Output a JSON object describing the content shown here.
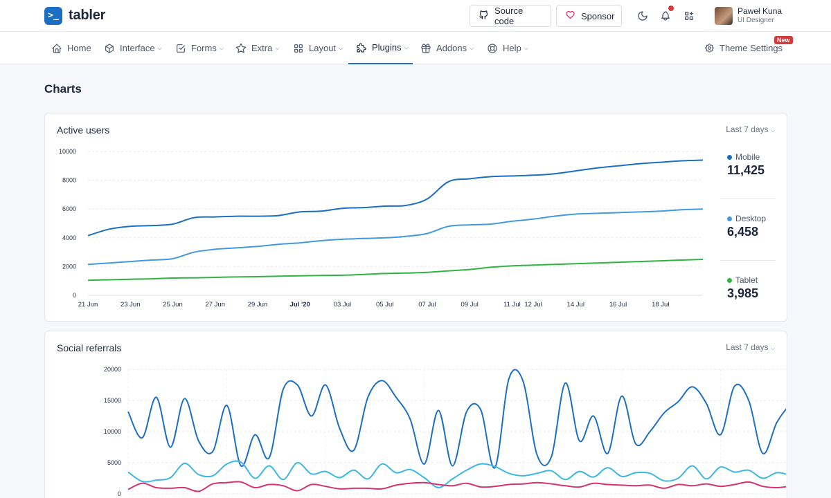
{
  "brand": {
    "name": "tabler",
    "logo_glyph": ">_"
  },
  "header": {
    "source_code_label": "Source code",
    "sponsor_label": "Sponsor",
    "user_name": "Paweł Kuna",
    "user_role": "UI Designer",
    "notification_dot": true
  },
  "nav": {
    "items": [
      {
        "label": "Home",
        "icon": "home-icon",
        "dropdown": false
      },
      {
        "label": "Interface",
        "icon": "package-icon",
        "dropdown": true
      },
      {
        "label": "Forms",
        "icon": "checkbox-icon",
        "dropdown": true
      },
      {
        "label": "Extra",
        "icon": "star-icon",
        "dropdown": true
      },
      {
        "label": "Layout",
        "icon": "layout-grid-icon",
        "dropdown": true
      },
      {
        "label": "Plugins",
        "icon": "puzzle-icon",
        "dropdown": true,
        "active": true
      },
      {
        "label": "Addons",
        "icon": "gift-icon",
        "dropdown": true
      },
      {
        "label": "Help",
        "icon": "lifebuoy-icon",
        "dropdown": true
      }
    ],
    "theme_settings_label": "Theme Settings",
    "new_badge": "New"
  },
  "page": {
    "title": "Charts"
  },
  "colors": {
    "accent": "#1b6ec2",
    "mobile": "#1b6ec2",
    "desktop": "#4299e1",
    "tablet": "#2fb344",
    "pink": "#d6336c",
    "danger": "#d63939"
  },
  "cards": {
    "active_users": {
      "title": "Active users",
      "range": "Last 7 days",
      "legend": [
        {
          "name": "Mobile",
          "value": "11,425"
        },
        {
          "name": "Desktop",
          "value": "6,458"
        },
        {
          "name": "Tablet",
          "value": "3,985"
        }
      ]
    },
    "social_referrals": {
      "title": "Social referrals",
      "range": "Last 7 days"
    }
  },
  "chart_data": [
    {
      "type": "line",
      "title": "Active users",
      "ylim": [
        0,
        10000
      ],
      "yticks": [
        0,
        2000,
        4000,
        6000,
        8000,
        10000
      ],
      "xlim": [
        "2020-06-21",
        "2020-07-20"
      ],
      "xticks": [
        {
          "date": "2020-06-21",
          "label": "21 Jun"
        },
        {
          "date": "2020-06-23",
          "label": "23 Jun"
        },
        {
          "date": "2020-06-25",
          "label": "25 Jun"
        },
        {
          "date": "2020-06-27",
          "label": "27 Jun"
        },
        {
          "date": "2020-06-29",
          "label": "29 Jun"
        },
        {
          "date": "2020-07-01",
          "label": "Jul '20",
          "bold": true
        },
        {
          "date": "2020-07-03",
          "label": "03 Jul"
        },
        {
          "date": "2020-07-05",
          "label": "05 Jul"
        },
        {
          "date": "2020-07-07",
          "label": "07 Jul"
        },
        {
          "date": "2020-07-09",
          "label": "09 Jul"
        },
        {
          "date": "2020-07-11",
          "label": "11 Jul"
        },
        {
          "date": "2020-07-12",
          "label": "12 Jul"
        },
        {
          "date": "2020-07-14",
          "label": "14 Jul"
        },
        {
          "date": "2020-07-16",
          "label": "16 Jul"
        },
        {
          "date": "2020-07-18",
          "label": "18 Jul"
        }
      ],
      "x": [
        "2020-06-21",
        "2020-06-22",
        "2020-06-23",
        "2020-06-24",
        "2020-06-25",
        "2020-06-26",
        "2020-06-27",
        "2020-06-28",
        "2020-06-29",
        "2020-06-30",
        "2020-07-01",
        "2020-07-02",
        "2020-07-03",
        "2020-07-04",
        "2020-07-05",
        "2020-07-06",
        "2020-07-07",
        "2020-07-08",
        "2020-07-09",
        "2020-07-10",
        "2020-07-11",
        "2020-07-12",
        "2020-07-13",
        "2020-07-14",
        "2020-07-15",
        "2020-07-16",
        "2020-07-17",
        "2020-07-18",
        "2020-07-19",
        "2020-07-20"
      ],
      "series": [
        {
          "name": "Mobile",
          "values": [
            4150,
            4600,
            4800,
            4850,
            4950,
            5400,
            5450,
            5500,
            5500,
            5550,
            5800,
            5850,
            6050,
            6100,
            6200,
            6250,
            6700,
            7900,
            8100,
            8250,
            8300,
            8350,
            8450,
            8650,
            8850,
            9000,
            9150,
            9250,
            9350,
            9400
          ]
        },
        {
          "name": "Desktop",
          "values": [
            2150,
            2250,
            2350,
            2450,
            2550,
            3000,
            3200,
            3300,
            3400,
            3550,
            3650,
            3800,
            3900,
            3950,
            4000,
            4100,
            4300,
            4800,
            4900,
            4950,
            5150,
            5300,
            5500,
            5650,
            5700,
            5750,
            5800,
            5850,
            5950,
            6000
          ]
        },
        {
          "name": "Tablet",
          "values": [
            1050,
            1080,
            1120,
            1150,
            1200,
            1220,
            1250,
            1280,
            1300,
            1330,
            1360,
            1380,
            1400,
            1450,
            1520,
            1550,
            1600,
            1700,
            1800,
            1950,
            2050,
            2100,
            2150,
            2200,
            2250,
            2300,
            2350,
            2400,
            2450,
            2500
          ]
        }
      ]
    },
    {
      "type": "line",
      "title": "Social referrals",
      "ylim": [
        0,
        20000
      ],
      "yticks": [
        0,
        5000,
        10000,
        15000,
        20000
      ],
      "series": [
        {
          "values": [
            13200,
            9000,
            15500,
            7500,
            15300,
            8500,
            6800,
            14200,
            4500,
            9500,
            5800,
            16800,
            17500,
            12500,
            17500,
            10500,
            7000,
            15500,
            18200,
            15500,
            12000,
            4800,
            13400,
            4500,
            13200,
            13500,
            4200,
            18500,
            18100,
            6200,
            5900,
            17800,
            8500,
            12500,
            6500,
            15700,
            8000,
            10000,
            13000,
            14800,
            17200,
            14500,
            9500,
            17300,
            15000,
            6500,
            11500,
            14500,
            16500,
            6500
          ]
        },
        {
          "values": [
            3500,
            2000,
            2200,
            2600,
            4900,
            3100,
            2900,
            4800,
            5100,
            2500,
            4500,
            2300,
            5000,
            3200,
            3600,
            2600,
            3800,
            2400,
            4800,
            3400,
            3900,
            2600,
            1000,
            2400,
            3800,
            4800,
            4400,
            3300,
            2900,
            3300,
            3700,
            2300,
            3600,
            2700,
            4200,
            2800,
            3400,
            3300,
            2100,
            2500,
            4500,
            2400,
            4300,
            3500,
            3800,
            2500,
            3400,
            3100,
            3900,
            4200
          ]
        },
        {
          "values": [
            700,
            1700,
            1000,
            900,
            1000,
            400,
            1600,
            1800,
            1900,
            1000,
            1500,
            1300,
            500,
            1500,
            1200,
            800,
            900,
            900,
            800,
            1400,
            1700,
            1800,
            1500,
            1300,
            1700,
            1100,
            1200,
            1500,
            1600,
            1800,
            1600,
            1300,
            1100,
            1700,
            1500,
            1400,
            1300,
            1400,
            900,
            1500,
            1300,
            1600,
            1200,
            1500,
            1900,
            1200,
            1000,
            1200,
            1000,
            1900
          ]
        }
      ]
    }
  ]
}
